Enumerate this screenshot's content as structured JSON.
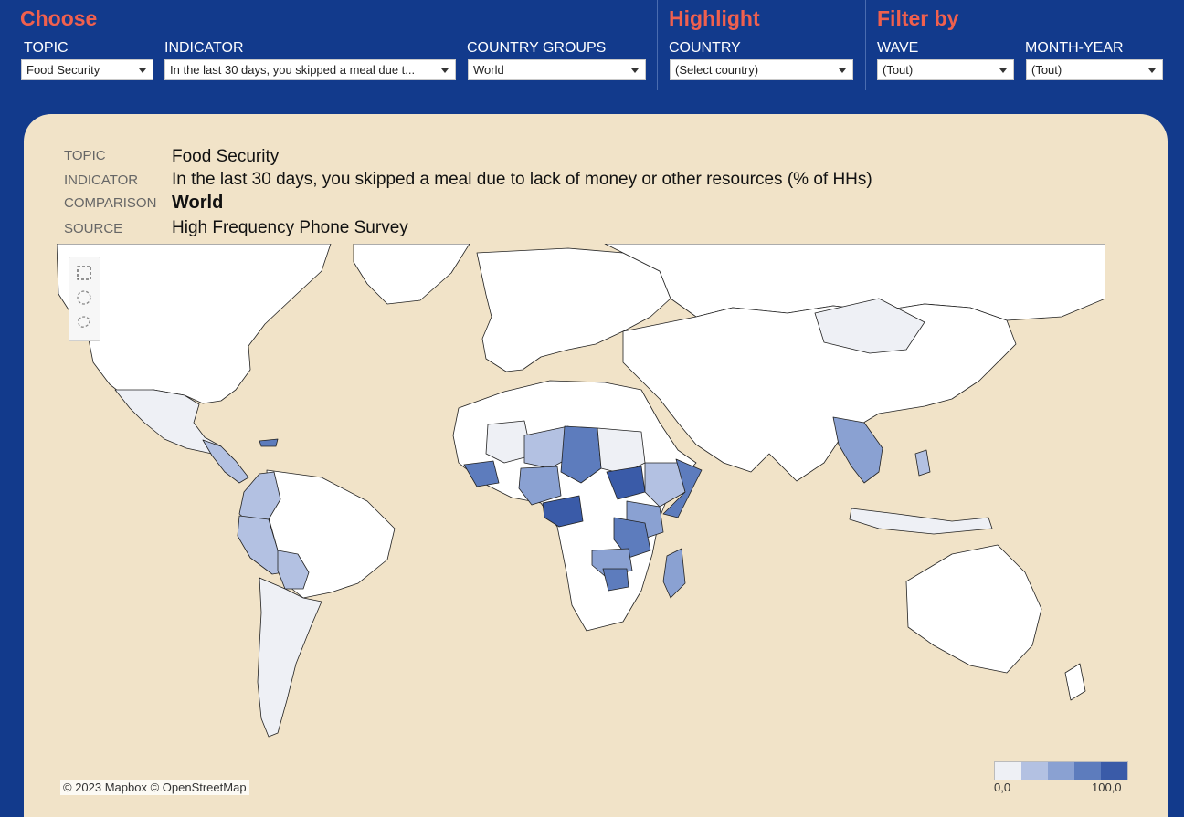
{
  "header": {
    "choose_title": "Choose",
    "highlight_title": "Highlight",
    "filter_title": "Filter by",
    "filters": [
      {
        "label": "TOPIC",
        "value": "Food Security"
      },
      {
        "label": "INDICATOR",
        "value": "In the last 30 days, you skipped a meal due t..."
      },
      {
        "label": "COUNTRY GROUPS",
        "value": "World"
      },
      {
        "label": "COUNTRY",
        "value": "(Select country)"
      },
      {
        "label": "WAVE",
        "value": "(Tout)"
      },
      {
        "label": "MONTH-YEAR",
        "value": "(Tout)"
      }
    ]
  },
  "info": {
    "topic_key": "TOPIC",
    "topic_value": "Food Security",
    "indicator_key": "INDICATOR",
    "indicator_value": "In the last 30 days, you skipped a meal due to lack of money or other resources (% of HHs)",
    "comparison_key": "COMPARISON",
    "comparison_value": "World",
    "source_key": "SOURCE",
    "source_value": "High Frequency Phone Survey"
  },
  "map": {
    "credit": "© 2023 Mapbox  © OpenStreetMap",
    "legend_min": "0,0",
    "legend_max": "100,0",
    "legend_colors": [
      "#eef0f5",
      "#b3c1e2",
      "#8aa1d2",
      "#5d7cbd",
      "#3a5ba8"
    ],
    "ocean_color": "#f1e3c8",
    "land_color": "#ffffff",
    "tool_icons": [
      "rectangle-select-icon",
      "radial-select-icon",
      "lasso-select-icon"
    ],
    "highlighted_regions": [
      {
        "name": "Mexico",
        "level": 1
      },
      {
        "name": "Guatemala",
        "level": 2
      },
      {
        "name": "Honduras",
        "level": 2
      },
      {
        "name": "Haiti / Dominican Republic",
        "level": 3
      },
      {
        "name": "Colombia",
        "level": 2
      },
      {
        "name": "Ecuador",
        "level": 2
      },
      {
        "name": "Peru",
        "level": 2
      },
      {
        "name": "Bolivia",
        "level": 2
      },
      {
        "name": "Paraguay",
        "level": 2
      },
      {
        "name": "Chile",
        "level": 1
      },
      {
        "name": "Argentina",
        "level": 1
      },
      {
        "name": "Mongolia",
        "level": 1
      },
      {
        "name": "Mali",
        "level": 1
      },
      {
        "name": "Burkina Faso",
        "level": 2
      },
      {
        "name": "Niger",
        "level": 2
      },
      {
        "name": "Chad",
        "level": 4
      },
      {
        "name": "Sudan",
        "level": 1
      },
      {
        "name": "South Sudan",
        "level": 5
      },
      {
        "name": "Nigeria",
        "level": 3
      },
      {
        "name": "Ghana",
        "level": 3
      },
      {
        "name": "Sierra Leone / Liberia",
        "level": 3
      },
      {
        "name": "Ethiopia",
        "level": 2
      },
      {
        "name": "Somalia",
        "level": 4
      },
      {
        "name": "Kenya",
        "level": 3
      },
      {
        "name": "Uganda",
        "level": 3
      },
      {
        "name": "Congo",
        "level": 5
      },
      {
        "name": "Tanzania",
        "level": 4
      },
      {
        "name": "Zambia",
        "level": 2
      },
      {
        "name": "Malawi",
        "level": 3
      },
      {
        "name": "Zimbabwe",
        "level": 4
      },
      {
        "name": "Madagascar",
        "level": 3
      },
      {
        "name": "Myanmar",
        "level": 2
      },
      {
        "name": "Laos",
        "level": 3
      },
      {
        "name": "Cambodia",
        "level": 2
      },
      {
        "name": "Philippines",
        "level": 2
      },
      {
        "name": "Indonesia",
        "level": 1
      }
    ]
  }
}
